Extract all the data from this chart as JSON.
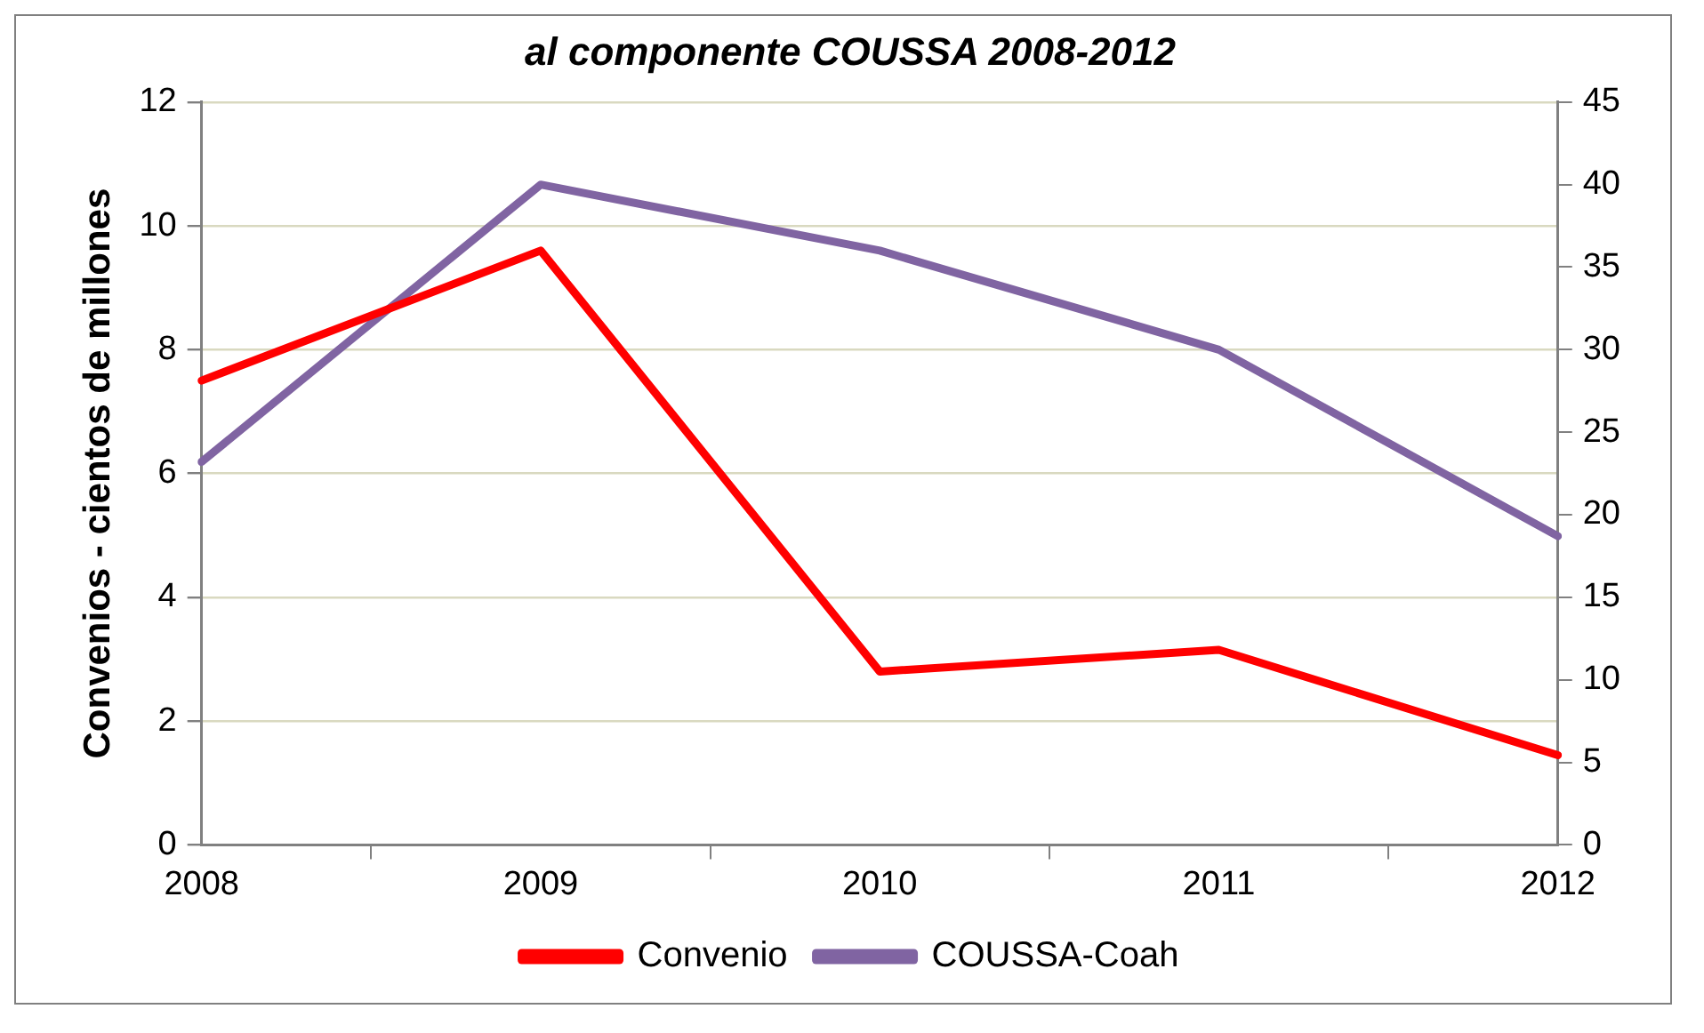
{
  "chart_data": {
    "type": "line",
    "title": "al componente COUSSA 2008-2012",
    "ylabel": "Convenios - cientos de millones",
    "categories": [
      "2008",
      "2009",
      "2010",
      "2011",
      "2012"
    ],
    "series": [
      {
        "name": "Convenio",
        "color": "#ff0000",
        "values": [
          7.5,
          9.6,
          2.8,
          3.15,
          1.45
        ]
      },
      {
        "name": "COUSSA-Coah",
        "color": "#8064a2",
        "values": [
          23.2,
          40,
          36,
          30,
          18.7
        ],
        "axis": "y2"
      }
    ],
    "ylim": [
      0,
      12
    ],
    "yticks": [
      0,
      2,
      4,
      6,
      8,
      10,
      12
    ],
    "y2lim": [
      0,
      45
    ],
    "y2ticks": [
      0,
      5,
      10,
      15,
      20,
      25,
      30,
      35,
      40,
      45
    ],
    "grid": "y",
    "legend": "bottom",
    "marker": "none",
    "line_style": "solid"
  }
}
